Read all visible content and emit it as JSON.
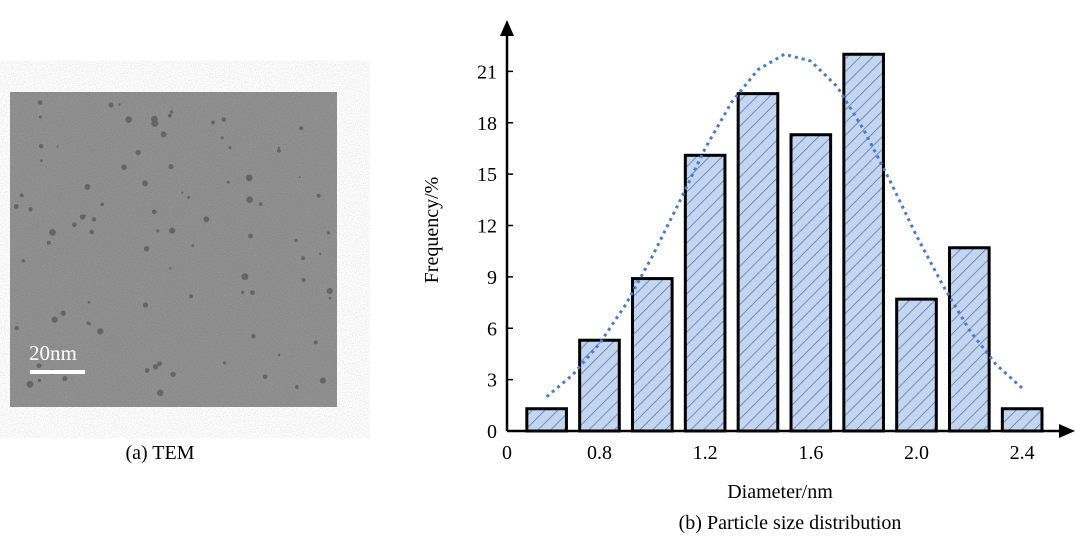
{
  "panel_a": {
    "scale_bar": "20nm",
    "caption": "(a) TEM"
  },
  "chart_data": {
    "type": "bar",
    "caption": "(b) Particle size distribution",
    "x_label": "Diameter/nm",
    "y_label": "Frequency/%",
    "x": [
      0.6,
      0.8,
      1.0,
      1.2,
      1.4,
      1.6,
      1.8,
      2.0,
      2.2,
      2.4
    ],
    "values": [
      1.3,
      5.3,
      8.9,
      16.1,
      19.7,
      17.3,
      22,
      7.7,
      10.7,
      1.3
    ],
    "color": "#c5d5ee",
    "hatch_color": "#4a7cc9",
    "xlim": [
      0.45,
      2.6
    ],
    "xticks": [
      {
        "value": 0.45,
        "label": "0"
      },
      0.8,
      1.2,
      1.6,
      {
        "value": 2.0,
        "label": "2.0"
      },
      2.4
    ],
    "ylim": [
      0,
      24
    ],
    "yticks": [
      0,
      3,
      6,
      9,
      12,
      15,
      18,
      21
    ],
    "fit_curve": {
      "color": "#4a7cc9",
      "x": [
        0.6,
        0.7,
        0.8,
        0.9,
        1.0,
        1.1,
        1.2,
        1.3,
        1.4,
        1.5,
        1.6,
        1.7,
        1.8,
        1.9,
        2.0,
        2.1,
        2.2,
        2.3,
        2.4
      ],
      "values": [
        2.0,
        3.3,
        5.1,
        7.4,
        10.2,
        13.3,
        16.5,
        19.2,
        21.1,
        22.0,
        21.6,
        20.1,
        17.6,
        14.6,
        11.4,
        8.5,
        5.9,
        3.9,
        2.5
      ]
    }
  }
}
